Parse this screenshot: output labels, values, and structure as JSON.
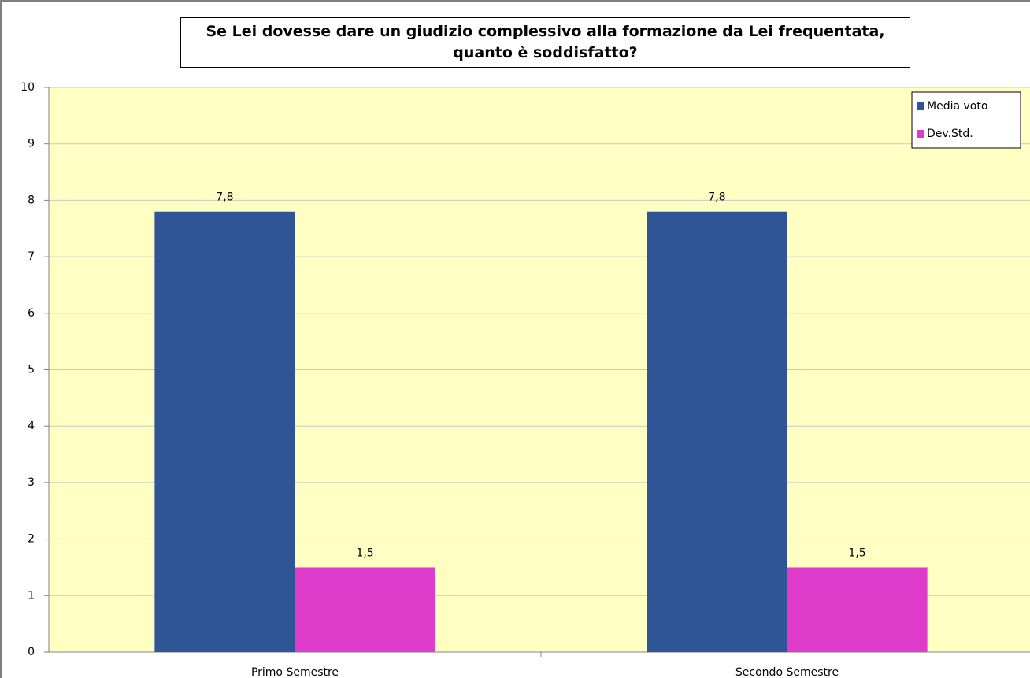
{
  "chart_data": {
    "type": "bar",
    "title": "Se Lei dovesse dare un giudizio complessivo alla formazione da Lei frequentata, quanto è soddisfatto?",
    "categories": [
      "Primo Semestre",
      "Secondo Semestre"
    ],
    "series": [
      {
        "name": "Media voto",
        "color": "#2f5597",
        "values": [
          7.8,
          7.8
        ],
        "value_labels": [
          "7,8",
          "7,8"
        ]
      },
      {
        "name": "Dev.Std.",
        "color": "#e03ccc",
        "values": [
          1.5,
          1.5
        ],
        "value_labels": [
          "1,5",
          "1,5"
        ]
      }
    ],
    "ylim": [
      0,
      10
    ],
    "yticks": [
      0,
      1,
      2,
      3,
      4,
      5,
      6,
      7,
      8,
      9,
      10
    ],
    "grid": true,
    "legend": "upper right"
  }
}
